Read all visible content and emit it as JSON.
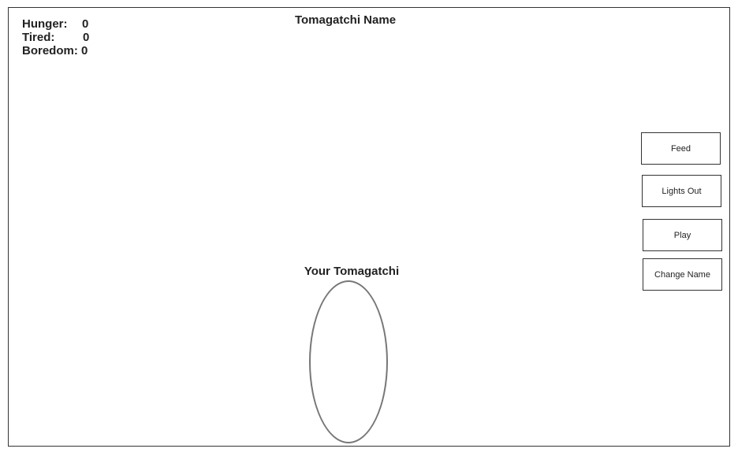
{
  "stats": {
    "hunger": {
      "label": "Hunger:",
      "value": "0"
    },
    "tired": {
      "label": "Tired:",
      "value": "0"
    },
    "boredom": {
      "label": "Boredom:",
      "value": "0"
    }
  },
  "header": {
    "name_title": "Tomagatchi Name"
  },
  "pet": {
    "title": "Your Tomagatchi"
  },
  "actions": {
    "feed": "Feed",
    "lights_out": "Lights Out",
    "play": "Play",
    "change_name": "Change Name"
  }
}
